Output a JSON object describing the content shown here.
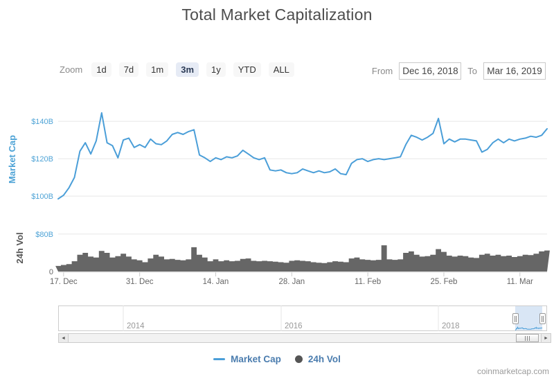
{
  "title": "Total Market Capitalization",
  "watermark": "coinmarketcap.com",
  "colors": {
    "accent": "#4A9ED8",
    "axis_label_blue": "#4EA3D6",
    "volume": "#666666",
    "legend_text": "#4A7CAE",
    "grid": "#e6e6e6",
    "axis_line": "#d9d9d9",
    "tick": "#cccccc",
    "x_label": "#666666",
    "year_label": "#999999",
    "selection_fill": "#cfe0f2"
  },
  "controls": {
    "zoom_label": "Zoom",
    "zoom_buttons": [
      "1d",
      "7d",
      "1m",
      "3m",
      "1y",
      "YTD",
      "ALL"
    ],
    "selected_zoom": "3m",
    "from_label": "From",
    "from_value": "Dec 16, 2018",
    "to_label": "To",
    "to_value": "Mar 16, 2019"
  },
  "legend": [
    {
      "label": "Market Cap",
      "marker": "line",
      "color": "#4A9ED8"
    },
    {
      "label": "24h Vol",
      "marker": "circle",
      "color": "#555555"
    }
  ],
  "navigator": {
    "year_labels": [
      "2014",
      "2016",
      "2018"
    ]
  },
  "chart_data": [
    {
      "type": "line",
      "name": "Market Cap",
      "ylabel": "Market Cap",
      "x_start": "Dec 16, 2018",
      "x_end": "Mar 16, 2019",
      "x_tick_labels": [
        "17. Dec",
        "31. Dec",
        "14. Jan",
        "28. Jan",
        "11. Feb",
        "25. Feb",
        "11. Mar"
      ],
      "x_tick_day_index": [
        1,
        15,
        29,
        43,
        57,
        71,
        85
      ],
      "ytick_values": [
        100,
        120,
        140
      ],
      "ytick_labels": [
        "$100B",
        "$120B",
        "$140B"
      ],
      "ylim": [
        93,
        153
      ],
      "unit": "$B",
      "values": [
        98.5,
        100.5,
        104.5,
        110,
        124,
        128.5,
        122.5,
        129.5,
        144.5,
        128.5,
        127,
        120.5,
        130,
        131,
        126,
        127.5,
        126,
        130.5,
        128,
        127.5,
        129.5,
        133,
        134,
        133,
        134.5,
        135.5,
        122,
        120.5,
        118.5,
        120.5,
        119.5,
        121,
        120.5,
        121.5,
        124.5,
        122.5,
        120.5,
        119.5,
        120.5,
        114,
        113.5,
        114,
        112.5,
        112,
        112.5,
        114.5,
        113.5,
        112.5,
        113.5,
        112.5,
        113,
        114.5,
        112,
        111.5,
        117.5,
        119.5,
        120,
        118.5,
        119.5,
        120,
        119.5,
        120,
        120.5,
        121,
        127.5,
        132.5,
        131.5,
        130,
        131.5,
        133.5,
        141.5,
        128,
        130.5,
        129,
        130.5,
        130.5,
        130,
        129.5,
        123.5,
        125,
        128.5,
        130.5,
        128.5,
        130.5,
        129.5,
        130.5,
        131,
        132,
        131.5,
        132.5,
        136
      ]
    },
    {
      "type": "area",
      "name": "24h Vol",
      "ylabel": "24h Vol",
      "ytick_values": [
        0,
        80
      ],
      "ytick_labels": [
        "0",
        "$80B"
      ],
      "ylim": [
        0,
        108
      ],
      "unit": "$B",
      "values": [
        12,
        14,
        16,
        22,
        36,
        40,
        32,
        30,
        44,
        40,
        30,
        33,
        38,
        32,
        26,
        24,
        20,
        28,
        36,
        32,
        26,
        27,
        25,
        24,
        26,
        52,
        36,
        30,
        22,
        26,
        22,
        24,
        22,
        23,
        27,
        28,
        23,
        22,
        23,
        22,
        21,
        20,
        19,
        23,
        24,
        23,
        22,
        20,
        19,
        18,
        20,
        22,
        21,
        20,
        28,
        30,
        26,
        25,
        24,
        25,
        56,
        26,
        25,
        26,
        40,
        43,
        36,
        32,
        33,
        36,
        48,
        42,
        34,
        32,
        34,
        33,
        30,
        29,
        36,
        38,
        34,
        36,
        33,
        34,
        31,
        33,
        36,
        35,
        38,
        43,
        45
      ]
    }
  ]
}
